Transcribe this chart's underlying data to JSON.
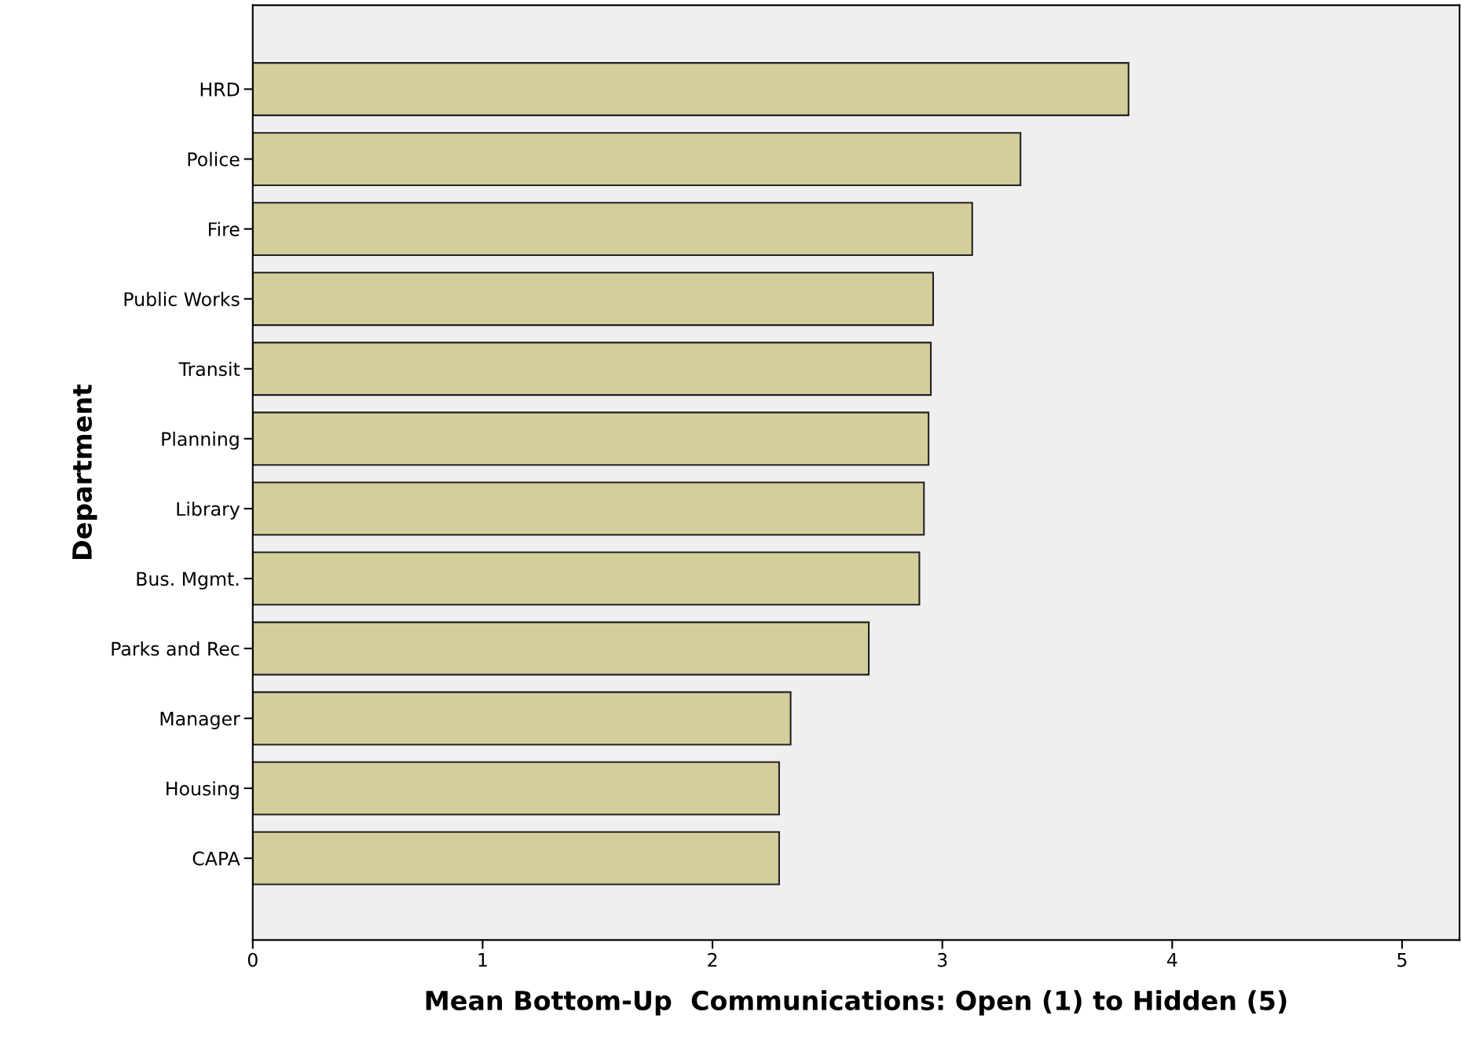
{
  "chart_data": {
    "type": "bar",
    "orientation": "horizontal",
    "xlabel": "Mean Bottom-Up  Communications: Open (1) to Hidden (5)",
    "ylabel": "Department",
    "categories": [
      "HRD",
      "Police",
      "Fire",
      "Public Works",
      "Transit",
      "Planning",
      "Library",
      "Bus. Mgmt.",
      "Parks and Rec",
      "Manager",
      "Housing",
      "CAPA"
    ],
    "values": [
      3.81,
      3.34,
      3.13,
      2.96,
      2.95,
      2.94,
      2.92,
      2.9,
      2.68,
      2.34,
      2.29,
      2.29
    ],
    "color": "#d3ce9b",
    "xlim": [
      0,
      5.25
    ],
    "xticks": [
      0,
      1,
      2,
      3,
      4,
      5
    ],
    "grid": false,
    "legend": false
  }
}
